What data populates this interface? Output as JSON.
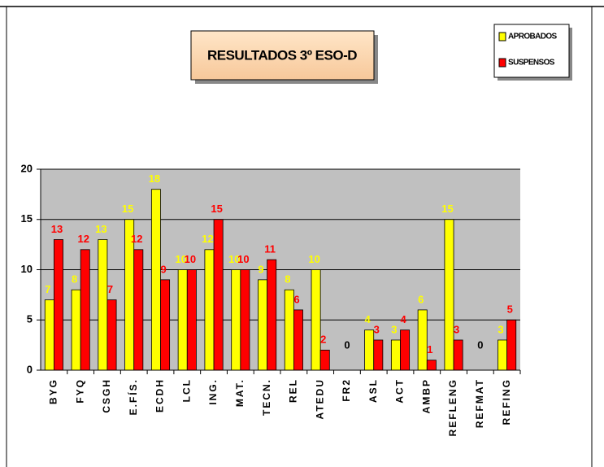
{
  "chart_data": {
    "type": "bar",
    "title": "RESULTADOS 3º ESO-D",
    "categories": [
      "BYG",
      "FYQ",
      "CSGH",
      "E.FÍS.",
      "ECDH",
      "LCL",
      "ING.",
      "MAT.",
      "TECN.",
      "REL",
      "ATEDU",
      "FR2",
      "ASL",
      "ACT",
      "AMBP",
      "REFLENG",
      "REFMAT",
      "REFING"
    ],
    "series": [
      {
        "name": "APROBADOS",
        "color": "#ffff00",
        "values": [
          7,
          8,
          13,
          15,
          18,
          10,
          12,
          10,
          9,
          8,
          10,
          0,
          4,
          3,
          6,
          15,
          0,
          3
        ]
      },
      {
        "name": "SUSPENSOS",
        "color": "#ff0000",
        "values": [
          13,
          12,
          7,
          12,
          9,
          10,
          15,
          10,
          11,
          6,
          2,
          null,
          3,
          4,
          1,
          3,
          null,
          5
        ]
      }
    ],
    "ylim": [
      0,
      20
    ],
    "yticks": [
      0,
      5,
      10,
      15,
      20
    ],
    "grid": true,
    "legend": "top-right"
  }
}
